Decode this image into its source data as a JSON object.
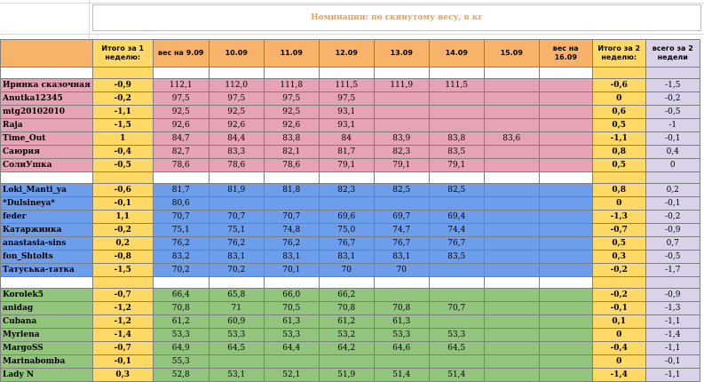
{
  "title": "Номинации: по скинутому весу, в кг",
  "headers": [
    "",
    "Итого за 1 неделю:",
    "вес на 9.09",
    "10.09",
    "11.09",
    "12.09",
    "13.09",
    "14.09",
    "15.09",
    "вес на 16.09",
    "Итого за 2 неделю:",
    "всего за 2 недели"
  ],
  "colors": {
    "pink": "#e6a3b5",
    "blue": "#6d9eeb",
    "green": "#93c47d",
    "yellow": "#ffd966",
    "lavender": "#d9d2e9",
    "header_orange": "#f8b26a"
  },
  "groups": [
    {
      "color": "pink",
      "rows": [
        {
          "name": "Иринка сказочная",
          "t1": "-0,9",
          "w0": "112,1",
          "d": [
            "112,0",
            "111,8",
            "111,5",
            "111,9",
            "111,5",
            "",
            ""
          ],
          "t2": "-0,6",
          "all": "-1,5"
        },
        {
          "name": "Anutka12345",
          "t1": "-0,2",
          "w0": "97,5",
          "d": [
            "97,5",
            "97,5",
            "97,5",
            "",
            "",
            "",
            ""
          ],
          "t2": "0",
          "all": "-0,2"
        },
        {
          "name": "mtg20102010",
          "t1": "-1,1",
          "w0": "92,5",
          "d": [
            "92,5",
            "92,5",
            "93,1",
            "",
            "",
            "",
            ""
          ],
          "t2": "0,6",
          "all": "-0,5"
        },
        {
          "name": "Raja",
          "t1": "-1,5",
          "w0": "92,6",
          "d": [
            "92,6",
            "92,6",
            "93,1",
            "",
            "",
            "",
            ""
          ],
          "t2": "0,5",
          "all": "-1"
        },
        {
          "name": "Time_Out",
          "t1": "1",
          "w0": "84,7",
          "d": [
            "84,4",
            "83,8",
            "84",
            "83,9",
            "83,8",
            "83,6",
            ""
          ],
          "t2": "-1,1",
          "all": "-0,1"
        },
        {
          "name": "Саюрия",
          "t1": "-0,4",
          "w0": "82,7",
          "d": [
            "83,3",
            "82,1",
            "81,7",
            "82,3",
            "83,5",
            "",
            ""
          ],
          "t2": "0,8",
          "all": "0,4"
        },
        {
          "name": "СолиУшка",
          "t1": "-0,5",
          "w0": "78,6",
          "d": [
            "78,6",
            "78,6",
            "79,1",
            "79,1",
            "79,1",
            "",
            ""
          ],
          "t2": "0,5",
          "all": "0"
        }
      ]
    },
    {
      "color": "blue",
      "rows": [
        {
          "name": "Loki_Manti_ya",
          "t1": "-0,6",
          "w0": "81,7",
          "d": [
            "81,9",
            "81,8",
            "82,3",
            "82,5",
            "82,5",
            "",
            ""
          ],
          "t2": "0,8",
          "all": "0,2"
        },
        {
          "name": "*Dulsineya*",
          "t1": "-0,1",
          "w0": "80,6",
          "d": [
            "",
            "",
            "",
            "",
            "",
            "",
            ""
          ],
          "t2": "0",
          "all": "-0,1"
        },
        {
          "name": "feder",
          "t1": "1,1",
          "w0": "70,7",
          "d": [
            "70,7",
            "70,7",
            "69,6",
            "69,7",
            "69,4",
            "",
            ""
          ],
          "t2": "-1,3",
          "all": "-0,2"
        },
        {
          "name": "Катаржинка",
          "t1": "-0,2",
          "w0": "75,1",
          "d": [
            "75,1",
            "74,8",
            "75,0",
            "74,7",
            "74,4",
            "",
            ""
          ],
          "t2": "-0,7",
          "all": "-0,9"
        },
        {
          "name": "anastasia-sins",
          "t1": "0,2",
          "w0": "76,2",
          "d": [
            "76,2",
            "76,2",
            "76,7",
            "76,7",
            "76,7",
            "",
            ""
          ],
          "t2": "0,5",
          "all": "0,7"
        },
        {
          "name": "fon_Shtolts",
          "t1": "-0,8",
          "w0": "83,2",
          "d": [
            "83,1",
            "83,1",
            "83,1",
            "83,1",
            "83,5",
            "",
            ""
          ],
          "t2": "0,3",
          "all": "-0,5"
        },
        {
          "name": "Татуська-татка",
          "t1": "-1,5",
          "w0": "70,2",
          "d": [
            "70,2",
            "70,1",
            "70",
            "70",
            "",
            "",
            ""
          ],
          "t2": "-0,2",
          "all": "-1,7"
        }
      ]
    },
    {
      "color": "green",
      "rows": [
        {
          "name": "Korolek5",
          "t1": "-0,7",
          "w0": "66,4",
          "d": [
            "65,8",
            "66,0",
            "66,2",
            "",
            "",
            "",
            ""
          ],
          "t2": "-0,2",
          "all": "-0,9"
        },
        {
          "name": "anidag",
          "t1": "-1,2",
          "w0": "70,8",
          "d": [
            "71",
            "70,5",
            "70,8",
            "70,8",
            "70,7",
            "",
            ""
          ],
          "t2": "-0,1",
          "all": "-1,3"
        },
        {
          "name": "Cubana",
          "t1": "-1,2",
          "w0": "61,2",
          "d": [
            "60,9",
            "61,3",
            "61,2",
            "61,3",
            "",
            "",
            ""
          ],
          "t2": "0,1",
          "all": "-1,1"
        },
        {
          "name": "Myrlena",
          "t1": "-1,4",
          "w0": "53,3",
          "d": [
            "53,3",
            "53,3",
            "53,2",
            "53,3",
            "53,3",
            "",
            ""
          ],
          "t2": "0",
          "all": "-1,4"
        },
        {
          "name": "MargoSS",
          "t1": "-0,7",
          "w0": "64,9",
          "d": [
            "64,5",
            "64,4",
            "64,2",
            "64,6",
            "64,5",
            "",
            ""
          ],
          "t2": "-0,4",
          "all": "-1,1"
        },
        {
          "name": "Marinabomba",
          "t1": "-0,1",
          "w0": "55,3",
          "d": [
            "",
            "",
            "",
            "",
            "",
            "",
            ""
          ],
          "t2": "0",
          "all": "-0,1"
        },
        {
          "name": "Lady N",
          "t1": "0,3",
          "w0": "52,8",
          "d": [
            "53,1",
            "52,1",
            "51,9",
            "51,4",
            "51,4",
            "",
            ""
          ],
          "t2": "-1,4",
          "all": "-1,1"
        }
      ]
    }
  ]
}
